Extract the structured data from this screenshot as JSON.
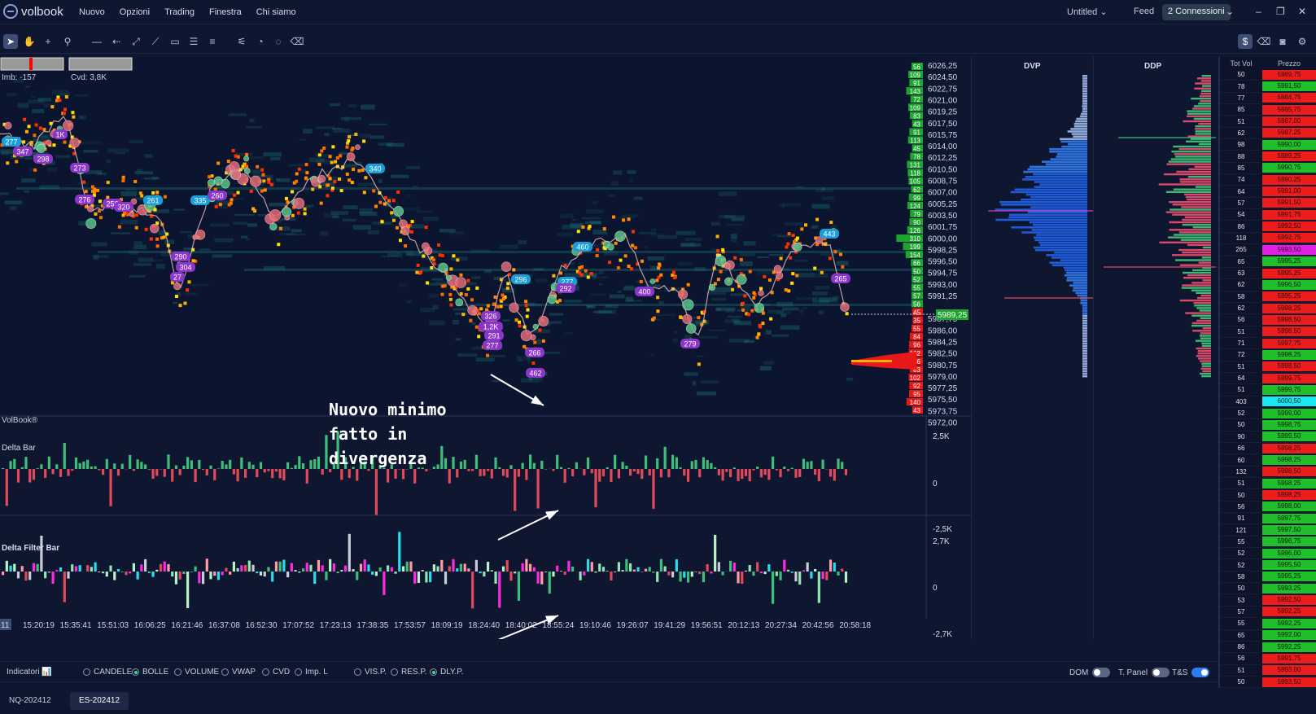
{
  "app": {
    "name": "volbook"
  },
  "menu": [
    "Nuovo",
    "Opzioni",
    "Trading",
    "Finestra",
    "Chi siamo"
  ],
  "titlebar": {
    "workspace": "Untitled",
    "feed_label": "Feed",
    "connections": "2 Connessioni"
  },
  "chart": {
    "imb": "Imb: -157",
    "cvd": "Cvd: 3,8K",
    "watermark": "VolBook®",
    "annotation": "Nuovo minimo\nfatto in\ndivergenza",
    "current_price": "5989,25",
    "price_labels": [
      "6026,25",
      "6024,50",
      "6022,75",
      "6021,00",
      "6019,25",
      "6017,50",
      "6015,75",
      "6014,00",
      "6012,25",
      "6010,50",
      "6008,75",
      "6007,00",
      "6005,25",
      "6003,50",
      "6001,75",
      "6000,00",
      "5998,25",
      "5996,50",
      "5994,75",
      "5993,00",
      "5991,25",
      "5987,75",
      "5986,00",
      "5984,25",
      "5982,50",
      "5980,75",
      "5979,00",
      "5977,25",
      "5975,50",
      "5973,75",
      "5972,00"
    ],
    "volume_labels": [
      "56",
      "109",
      "91",
      "143",
      "72",
      "109",
      "83",
      "43",
      "91",
      "113",
      "45",
      "78",
      "131",
      "118",
      "105",
      "62",
      "99",
      "124",
      "79",
      "90",
      "126",
      "310",
      "199",
      "154",
      "66",
      "50",
      "52",
      "55",
      "57",
      "56",
      "45",
      "35",
      "55",
      "84",
      "96",
      "102",
      "356",
      "83",
      "102",
      "92",
      "95",
      "140",
      "43"
    ],
    "bubbles": [
      {
        "label": "277",
        "color": "#1b9ed8"
      },
      {
        "label": "347",
        "color": "#8a36c8"
      },
      {
        "label": "1K",
        "color": "#8a36c8"
      },
      {
        "label": "298",
        "color": "#8a36c8"
      },
      {
        "label": "273",
        "color": "#8a36c8"
      },
      {
        "label": "276",
        "color": "#8a36c8"
      },
      {
        "label": "256",
        "color": "#8a36c8"
      },
      {
        "label": "320",
        "color": "#8a36c8"
      },
      {
        "label": "261",
        "color": "#1b9ed8"
      },
      {
        "label": "335",
        "color": "#1b9ed8"
      },
      {
        "label": "260",
        "color": "#8a36c8"
      },
      {
        "label": "290",
        "color": "#8a36c8"
      },
      {
        "label": "304",
        "color": "#8a36c8"
      },
      {
        "label": "27",
        "color": "#8a36c8"
      },
      {
        "label": "340",
        "color": "#1b9ed8"
      },
      {
        "label": "326",
        "color": "#8a36c8"
      },
      {
        "label": "1,2K",
        "color": "#8a36c8"
      },
      {
        "label": "291",
        "color": "#8a36c8"
      },
      {
        "label": "277",
        "color": "#8a36c8"
      },
      {
        "label": "296",
        "color": "#1b9ed8"
      },
      {
        "label": "266",
        "color": "#8a36c8"
      },
      {
        "label": "462",
        "color": "#8a36c8"
      },
      {
        "label": "277",
        "color": "#1b9ed8"
      },
      {
        "label": "292",
        "color": "#8a36c8"
      },
      {
        "label": "460",
        "color": "#1b9ed8"
      },
      {
        "label": "400",
        "color": "#8a36c8"
      },
      {
        "label": "279",
        "color": "#8a36c8"
      },
      {
        "label": "443",
        "color": "#1b9ed8"
      },
      {
        "label": "265",
        "color": "#8a36c8"
      }
    ]
  },
  "delta_bar": {
    "title": "Delta Bar",
    "scale": [
      "2,5K",
      "0",
      "-2,5K"
    ]
  },
  "delta_filter": {
    "title": "Delta Filter Bar",
    "scale": [
      "2,7K",
      "0",
      "-2,7K"
    ]
  },
  "time_labels": [
    "11",
    "15:20:19",
    "15:35:41",
    "15:51:03",
    "16:06:25",
    "16:21:46",
    "16:37:08",
    "16:52:30",
    "17:07:52",
    "17:23:13",
    "17:38:35",
    "17:53:57",
    "18:09:19",
    "18:24:40",
    "18:40:02",
    "18:55:24",
    "19:10:46",
    "19:26:07",
    "19:41:29",
    "19:56:51",
    "20:12:13",
    "20:27:34",
    "20:42:56",
    "20:58:18"
  ],
  "dvp": {
    "title": "DVP"
  },
  "ddp": {
    "title": "DDP"
  },
  "times_sales": {
    "headers": [
      "Tot Vol",
      "Prezzo"
    ],
    "rows": [
      {
        "v": "50",
        "p": "5989,75",
        "c": "red"
      },
      {
        "v": "78",
        "p": "5991,50",
        "c": "green"
      },
      {
        "v": "77",
        "p": "5984,75",
        "c": "red"
      },
      {
        "v": "85",
        "p": "5985,75",
        "c": "red"
      },
      {
        "v": "51",
        "p": "5987,00",
        "c": "red"
      },
      {
        "v": "62",
        "p": "5987,25",
        "c": "red"
      },
      {
        "v": "98",
        "p": "5990,00",
        "c": "green"
      },
      {
        "v": "88",
        "p": "5989,25",
        "c": "red"
      },
      {
        "v": "85",
        "p": "5990,75",
        "c": "green"
      },
      {
        "v": "74",
        "p": "5990,25",
        "c": "red"
      },
      {
        "v": "64",
        "p": "5991,00",
        "c": "red"
      },
      {
        "v": "57",
        "p": "5991,50",
        "c": "red"
      },
      {
        "v": "54",
        "p": "5991,75",
        "c": "red"
      },
      {
        "v": "86",
        "p": "5992,50",
        "c": "red"
      },
      {
        "v": "118",
        "p": "5992,75",
        "c": "red"
      },
      {
        "v": "265",
        "p": "5993,50",
        "c": "mag"
      },
      {
        "v": "65",
        "p": "5995,25",
        "c": "green"
      },
      {
        "v": "63",
        "p": "5995,25",
        "c": "red"
      },
      {
        "v": "62",
        "p": "5996,50",
        "c": "green"
      },
      {
        "v": "58",
        "p": "5995,25",
        "c": "red"
      },
      {
        "v": "62",
        "p": "5998,25",
        "c": "red"
      },
      {
        "v": "56",
        "p": "5998,50",
        "c": "red"
      },
      {
        "v": "51",
        "p": "5998,50",
        "c": "red"
      },
      {
        "v": "71",
        "p": "5997,75",
        "c": "red"
      },
      {
        "v": "72",
        "p": "5998,25",
        "c": "green"
      },
      {
        "v": "51",
        "p": "5998,50",
        "c": "red"
      },
      {
        "v": "64",
        "p": "5999,75",
        "c": "red"
      },
      {
        "v": "51",
        "p": "5999,75",
        "c": "green"
      },
      {
        "v": "403",
        "p": "6000,50",
        "c": "cyan"
      },
      {
        "v": "52",
        "p": "5999,00",
        "c": "green"
      },
      {
        "v": "50",
        "p": "5998,75",
        "c": "green"
      },
      {
        "v": "90",
        "p": "5999,50",
        "c": "green"
      },
      {
        "v": "66",
        "p": "5998,25",
        "c": "red"
      },
      {
        "v": "60",
        "p": "5998,25",
        "c": "green"
      },
      {
        "v": "132",
        "p": "5998,50",
        "c": "red"
      },
      {
        "v": "51",
        "p": "5998,25",
        "c": "green"
      },
      {
        "v": "50",
        "p": "5998,25",
        "c": "red"
      },
      {
        "v": "56",
        "p": "5998,00",
        "c": "green"
      },
      {
        "v": "91",
        "p": "5997,75",
        "c": "green"
      },
      {
        "v": "121",
        "p": "5997,50",
        "c": "green"
      },
      {
        "v": "55",
        "p": "5996,75",
        "c": "green"
      },
      {
        "v": "52",
        "p": "5996,00",
        "c": "green"
      },
      {
        "v": "52",
        "p": "5995,50",
        "c": "green"
      },
      {
        "v": "58",
        "p": "5995,25",
        "c": "green"
      },
      {
        "v": "50",
        "p": "5993,25",
        "c": "green"
      },
      {
        "v": "53",
        "p": "5992,50",
        "c": "red"
      },
      {
        "v": "57",
        "p": "5992,25",
        "c": "red"
      },
      {
        "v": "55",
        "p": "5992,25",
        "c": "green"
      },
      {
        "v": "65",
        "p": "5992,00",
        "c": "green"
      },
      {
        "v": "86",
        "p": "5992,25",
        "c": "green"
      },
      {
        "v": "56",
        "p": "5991,75",
        "c": "red"
      },
      {
        "v": "51",
        "p": "5993,00",
        "c": "red"
      },
      {
        "v": "50",
        "p": "5993,50",
        "c": "red"
      }
    ]
  },
  "indicators": {
    "label": "Indicatori",
    "options": [
      {
        "label": "CANDELE",
        "on": false
      },
      {
        "label": "BOLLE",
        "on": true
      },
      {
        "label": "VOLUME",
        "on": false
      },
      {
        "label": "VWAP",
        "on": false
      },
      {
        "label": "CVD",
        "on": false
      },
      {
        "label": "Imp. L",
        "on": false
      },
      {
        "label": "VIS.P.",
        "on": false
      },
      {
        "label": "RES.P.",
        "on": false
      },
      {
        "label": "DLY.P.",
        "on": true
      }
    ],
    "toggles": [
      {
        "label": "DOM",
        "on": false
      },
      {
        "label": "T. Panel",
        "on": false
      },
      {
        "label": "T&S",
        "on": true
      }
    ]
  },
  "tabs": [
    {
      "label": "NQ-202412",
      "active": false
    },
    {
      "label": "ES-202412",
      "active": true
    }
  ]
}
